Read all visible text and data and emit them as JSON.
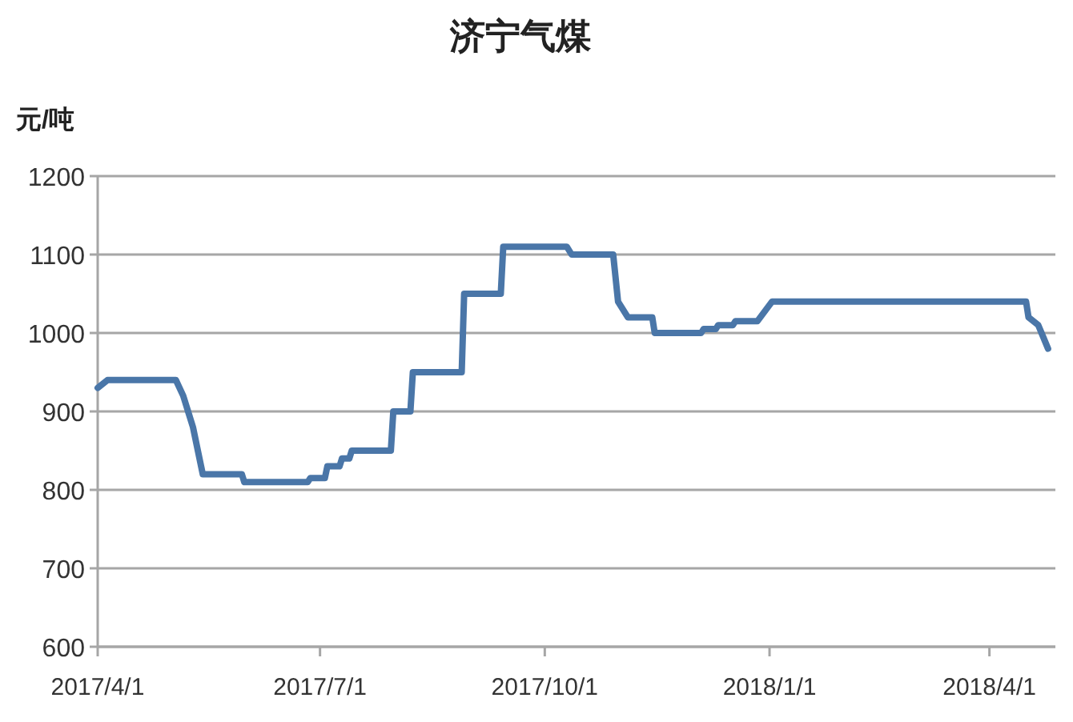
{
  "chart_data": {
    "type": "line",
    "title": "济宁气煤",
    "ylabel": "元/吨",
    "x": [
      "2017-04-01",
      "2017-04-05",
      "2017-05-03",
      "2017-05-06",
      "2017-05-08",
      "2017-05-10",
      "2017-05-14",
      "2017-05-30",
      "2017-05-31",
      "2017-06-26",
      "2017-06-27",
      "2017-07-03",
      "2017-07-04",
      "2017-07-09",
      "2017-07-10",
      "2017-07-13",
      "2017-07-14",
      "2017-07-30",
      "2017-07-31",
      "2017-08-07",
      "2017-08-08",
      "2017-08-28",
      "2017-08-29",
      "2017-09-13",
      "2017-09-14",
      "2017-10-10",
      "2017-10-12",
      "2017-10-29",
      "2017-10-31",
      "2017-11-04",
      "2017-11-14",
      "2017-11-15",
      "2017-12-04",
      "2017-12-05",
      "2017-12-10",
      "2017-12-11",
      "2017-12-17",
      "2017-12-18",
      "2017-12-27",
      "2018-01-02",
      "2018-04-16",
      "2018-04-17",
      "2018-04-21",
      "2018-04-23",
      "2018-04-25"
    ],
    "series": [
      {
        "color": "#4a76a8",
        "values": [
          930,
          940,
          940,
          920,
          900,
          880,
          820,
          820,
          810,
          810,
          815,
          815,
          830,
          830,
          840,
          840,
          850,
          850,
          900,
          900,
          950,
          950,
          1050,
          1050,
          1110,
          1110,
          1100,
          1100,
          1040,
          1020,
          1020,
          1000,
          1000,
          1005,
          1005,
          1010,
          1010,
          1015,
          1015,
          1040,
          1040,
          1020,
          1010,
          995,
          980
        ]
      }
    ],
    "xlim": [
      "2017-04-01",
      "2018-04-28"
    ],
    "xticks": [
      {
        "value": "2017-04-01",
        "label": "2017/4/1"
      },
      {
        "value": "2017-07-01",
        "label": "2017/7/1"
      },
      {
        "value": "2017-10-01",
        "label": "2017/10/1"
      },
      {
        "value": "2018-01-01",
        "label": "2018/1/1"
      },
      {
        "value": "2018-04-01",
        "label": "2018/4/1"
      }
    ],
    "ylim": [
      600,
      1200
    ],
    "yticks": [
      600,
      700,
      800,
      900,
      1000,
      1100,
      1200
    ],
    "grid": "y"
  }
}
